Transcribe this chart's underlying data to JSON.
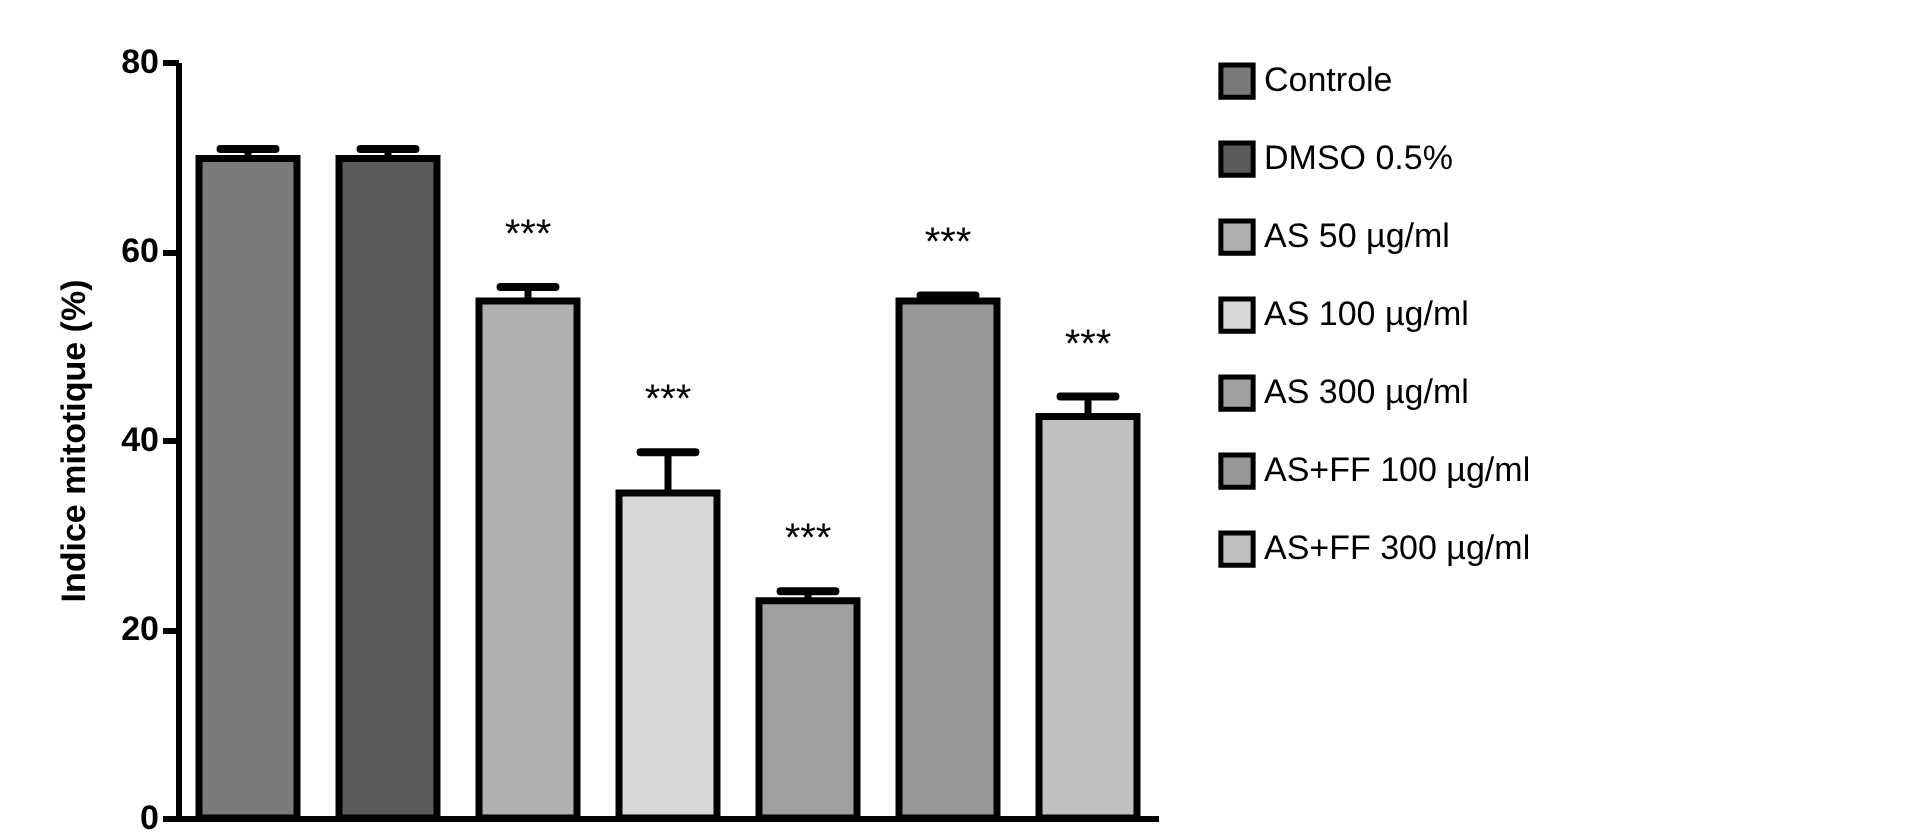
{
  "chart_data": {
    "type": "bar",
    "ylabel": "Indice mitotique (%)",
    "categories": [
      null,
      null,
      null,
      null,
      null,
      null,
      null
    ],
    "ylim": [
      0,
      80
    ],
    "yticks": [
      0,
      20,
      40,
      60,
      80
    ],
    "legend": "right",
    "tick_labels": "y",
    "series": [
      {
        "name": "Controle",
        "color": "#7a7a7a",
        "values": [
          69.8,
          null,
          null,
          null,
          null,
          null,
          null
        ],
        "errors": [
          [
            69.8,
            70.8
          ],
          null,
          null,
          null,
          null,
          null,
          null
        ]
      },
      {
        "name": "DMSO 0.5%",
        "color": "#5a5a5a",
        "values": [
          null,
          69.8,
          null,
          null,
          null,
          null,
          null
        ],
        "errors": [
          null,
          [
            69.8,
            70.8
          ],
          null,
          null,
          null,
          null,
          null
        ]
      },
      {
        "name": "AS 50 µg/ml",
        "color": "#b0b0b0",
        "values": [
          null,
          null,
          54.7,
          null,
          null,
          null,
          null
        ],
        "errors": [
          null,
          null,
          [
            54.7,
            56.2
          ],
          null,
          null,
          null,
          null
        ],
        "value_labels": [
          null,
          null,
          "***",
          null,
          null,
          null,
          null
        ]
      },
      {
        "name": "AS 100 µg/ml",
        "color": "#d8d8d8",
        "values": [
          null,
          null,
          null,
          34.4,
          null,
          null,
          null
        ],
        "errors": [
          null,
          null,
          null,
          [
            34.4,
            38.7
          ],
          null,
          null,
          null
        ],
        "value_labels": [
          null,
          null,
          null,
          "***",
          null,
          null,
          null
        ]
      },
      {
        "name": "AS 300 µg/ml",
        "color": "#a0a0a0",
        "values": [
          null,
          null,
          null,
          null,
          23.0,
          null,
          null
        ],
        "errors": [
          null,
          null,
          null,
          null,
          [
            23.0,
            24.0
          ],
          null,
          null
        ],
        "value_labels": [
          null,
          null,
          null,
          null,
          "***",
          null,
          null
        ]
      },
      {
        "name": "AS+FF 100 µg/ml",
        "color": "#989898",
        "values": [
          null,
          null,
          null,
          null,
          null,
          54.7,
          null
        ],
        "errors": [
          null,
          null,
          null,
          null,
          null,
          [
            54.7,
            55.3
          ],
          null
        ],
        "value_labels": [
          null,
          null,
          null,
          null,
          null,
          "***",
          null
        ]
      },
      {
        "name": "AS+FF 300 µg/ml",
        "color": "#c0c0c0",
        "values": [
          null,
          null,
          null,
          null,
          null,
          null,
          42.5
        ],
        "errors": [
          null,
          null,
          null,
          null,
          null,
          null,
          [
            42.5,
            44.6
          ]
        ],
        "value_labels": [
          null,
          null,
          null,
          null,
          null,
          null,
          "***"
        ]
      }
    ]
  }
}
